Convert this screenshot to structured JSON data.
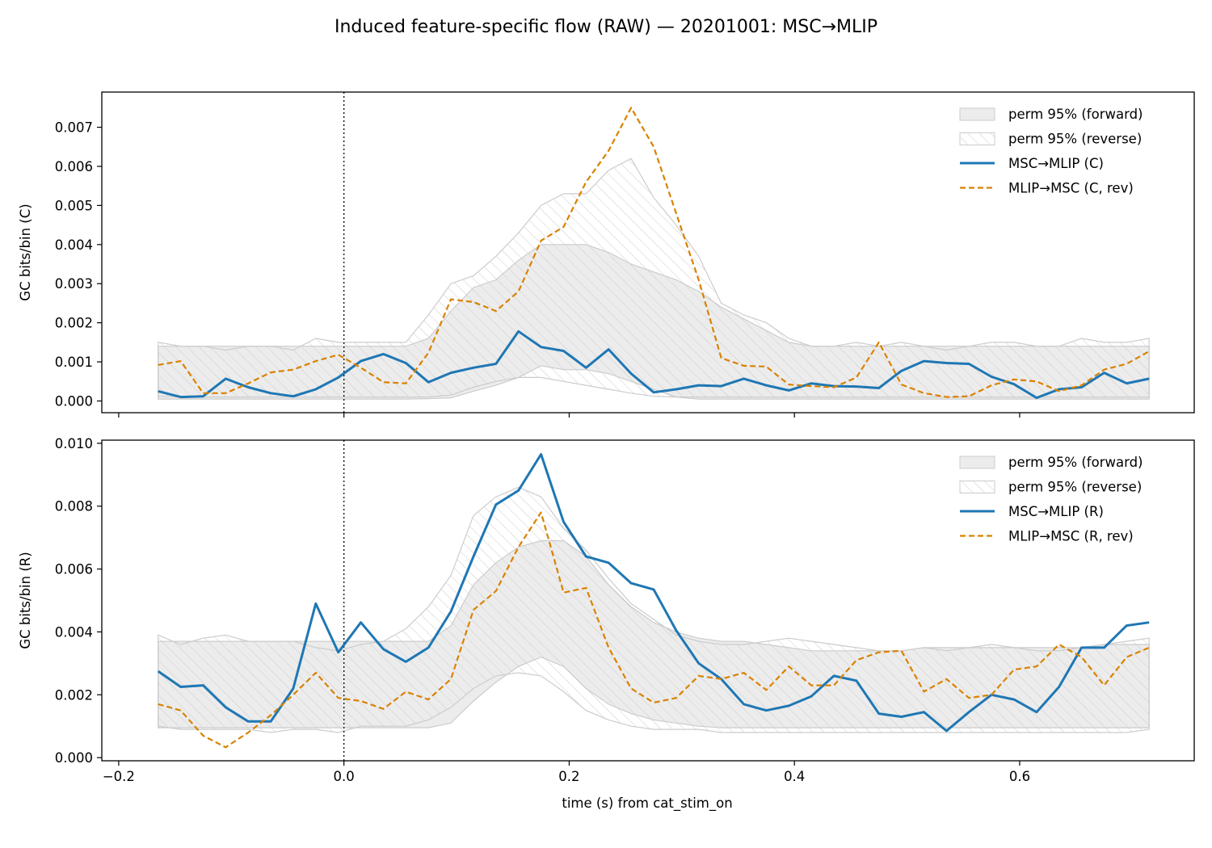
{
  "figure": {
    "suptitle": "Induced feature-specific flow (RAW) — 20201001: MSC→MLIP",
    "xlabel": "time (s) from cat_stim_on"
  },
  "colors": {
    "forward": "#1f77b4",
    "reverse": "#d98200",
    "band_fill": "#d9d9d9",
    "band_edge": "#cccccc",
    "hatch": "#c8c8c8"
  },
  "chart_data": [
    {
      "type": "line",
      "ylabel": "GC bits/bin (C)",
      "xlim": [
        -0.215,
        0.755
      ],
      "ylim": [
        -0.0003,
        0.0079
      ],
      "xticks": [
        -0.2,
        0.0,
        0.2,
        0.4,
        0.6
      ],
      "xtick_labels": [
        "",
        "",
        "",
        "",
        ""
      ],
      "yticks": [
        0,
        0.001,
        0.002,
        0.003,
        0.004,
        0.005,
        0.006,
        0.007
      ],
      "ytick_labels": [
        "0.000",
        "0.001",
        "0.002",
        "0.003",
        "0.004",
        "0.005",
        "0.006",
        "0.007"
      ],
      "vline_x": 0,
      "grid": false,
      "legend_position": "upper right",
      "x": [
        -0.165,
        -0.145,
        -0.125,
        -0.105,
        -0.085,
        -0.065,
        -0.045,
        -0.025,
        -0.005,
        0.015,
        0.035,
        0.055,
        0.075,
        0.095,
        0.115,
        0.135,
        0.155,
        0.175,
        0.195,
        0.215,
        0.235,
        0.255,
        0.275,
        0.295,
        0.315,
        0.335,
        0.355,
        0.375,
        0.395,
        0.415,
        0.435,
        0.455,
        0.475,
        0.495,
        0.515,
        0.535,
        0.555,
        0.575,
        0.595,
        0.615,
        0.635,
        0.655,
        0.675,
        0.695,
        0.715
      ],
      "bands": [
        {
          "name": "perm 95% (forward)",
          "style": "filled",
          "lower": [
            5e-05,
            5e-05,
            5e-05,
            5e-05,
            5e-05,
            5e-05,
            5e-05,
            5e-05,
            5e-05,
            5e-05,
            5e-05,
            5e-05,
            6e-05,
            8e-05,
            0.00025,
            0.0004,
            0.0006,
            0.0009,
            0.0008,
            0.0008,
            0.0007,
            0.0005,
            0.0003,
            0.0001,
            5e-05,
            5e-05,
            5e-05,
            5e-05,
            5e-05,
            5e-05,
            5e-05,
            5e-05,
            5e-05,
            5e-05,
            5e-05,
            5e-05,
            5e-05,
            5e-05,
            5e-05,
            5e-05,
            5e-05,
            5e-05,
            5e-05,
            5e-05,
            5e-05
          ],
          "upper": [
            0.0014,
            0.0014,
            0.0014,
            0.0014,
            0.0014,
            0.0014,
            0.0014,
            0.0014,
            0.0014,
            0.0014,
            0.0014,
            0.0014,
            0.0016,
            0.0023,
            0.0029,
            0.0031,
            0.0036,
            0.004,
            0.004,
            0.004,
            0.0038,
            0.0035,
            0.0033,
            0.0031,
            0.0028,
            0.0024,
            0.0021,
            0.0018,
            0.0015,
            0.0014,
            0.0014,
            0.0014,
            0.0014,
            0.0014,
            0.0014,
            0.0014,
            0.0014,
            0.0014,
            0.0014,
            0.0014,
            0.0014,
            0.0014,
            0.0014,
            0.0014,
            0.0014
          ]
        },
        {
          "name": "perm 95% (reverse)",
          "style": "hatched",
          "lower": [
            0.00012,
            0.0001,
            0.0001,
            0.0001,
            0.0001,
            0.0001,
            0.0001,
            0.0001,
            0.0001,
            0.0001,
            0.0001,
            0.0001,
            0.0001,
            0.00015,
            0.00035,
            0.0005,
            0.0006,
            0.0006,
            0.0005,
            0.0004,
            0.0003,
            0.0002,
            0.00012,
            0.0001,
            0.0001,
            0.0001,
            0.0001,
            0.0001,
            0.0001,
            0.0001,
            0.0001,
            0.0001,
            0.0001,
            0.0001,
            0.0001,
            0.0001,
            0.0001,
            0.0001,
            0.0001,
            0.0001,
            0.0001,
            0.0001,
            0.0001,
            0.0001,
            0.0001
          ],
          "upper": [
            0.0015,
            0.0014,
            0.0014,
            0.0013,
            0.0014,
            0.0014,
            0.0013,
            0.0016,
            0.0015,
            0.0015,
            0.0015,
            0.0015,
            0.0022,
            0.003,
            0.0032,
            0.0037,
            0.0043,
            0.005,
            0.0053,
            0.0053,
            0.0059,
            0.0062,
            0.0052,
            0.0045,
            0.0037,
            0.0025,
            0.0022,
            0.002,
            0.0016,
            0.0014,
            0.0014,
            0.0015,
            0.0014,
            0.0015,
            0.0014,
            0.0013,
            0.0014,
            0.0015,
            0.0015,
            0.0014,
            0.0014,
            0.0016,
            0.0015,
            0.0015,
            0.0016
          ]
        }
      ],
      "series": [
        {
          "name": "MSC→MLIP (C)",
          "style": "solid",
          "values": [
            0.00025,
            0.0001,
            0.00012,
            0.00057,
            0.00035,
            0.0002,
            0.00012,
            0.0003,
            0.0006,
            0.00102,
            0.0012,
            0.00097,
            0.00048,
            0.00072,
            0.00085,
            0.00095,
            0.00178,
            0.00138,
            0.00128,
            0.00085,
            0.00132,
            0.0007,
            0.00022,
            0.0003,
            0.0004,
            0.00038,
            0.00057,
            0.0004,
            0.00027,
            0.00045,
            0.00038,
            0.00037,
            0.00033,
            0.00077,
            0.00102,
            0.00097,
            0.00095,
            0.00062,
            0.00043,
            8e-05,
            0.0003,
            0.00035,
            0.00072,
            0.00045,
            0.00057
          ]
        },
        {
          "name": "MLIP→MSC (C, rev)",
          "style": "dashed",
          "values": [
            0.00092,
            0.00102,
            0.0002,
            0.0002,
            0.00045,
            0.00073,
            0.0008,
            0.00102,
            0.00118,
            0.00085,
            0.00048,
            0.00045,
            0.00123,
            0.0026,
            0.00253,
            0.0023,
            0.0028,
            0.0041,
            0.00445,
            0.0056,
            0.0064,
            0.0075,
            0.0065,
            0.0048,
            0.0031,
            0.0011,
            0.0009,
            0.00088,
            0.00042,
            0.00038,
            0.00035,
            0.0006,
            0.0015,
            0.00042,
            0.0002,
            0.0001,
            0.00012,
            0.0004,
            0.00055,
            0.0005,
            0.00025,
            0.0004,
            0.0008,
            0.00095,
            0.00127
          ]
        }
      ]
    },
    {
      "type": "line",
      "ylabel": "GC bits/bin (R)",
      "xlim": [
        -0.215,
        0.755
      ],
      "ylim": [
        -0.0001,
        0.0101
      ],
      "xticks": [
        -0.2,
        0.0,
        0.2,
        0.4,
        0.6
      ],
      "xtick_labels": [
        "−0.2",
        "0.0",
        "0.2",
        "0.4",
        "0.6"
      ],
      "yticks": [
        0,
        0.002,
        0.004,
        0.006,
        0.008,
        0.01
      ],
      "ytick_labels": [
        "0.000",
        "0.002",
        "0.004",
        "0.006",
        "0.008",
        "0.010"
      ],
      "vline_x": 0,
      "grid": false,
      "legend_position": "upper right",
      "x": [
        -0.165,
        -0.145,
        -0.125,
        -0.105,
        -0.085,
        -0.065,
        -0.045,
        -0.025,
        -0.005,
        0.015,
        0.035,
        0.055,
        0.075,
        0.095,
        0.115,
        0.135,
        0.155,
        0.175,
        0.195,
        0.215,
        0.235,
        0.255,
        0.275,
        0.295,
        0.315,
        0.335,
        0.355,
        0.375,
        0.395,
        0.415,
        0.435,
        0.455,
        0.475,
        0.495,
        0.515,
        0.535,
        0.555,
        0.575,
        0.595,
        0.615,
        0.635,
        0.655,
        0.675,
        0.695,
        0.715
      ],
      "bands": [
        {
          "name": "perm 95% (forward)",
          "style": "filled",
          "lower": [
            0.00095,
            0.00095,
            0.00095,
            0.00095,
            0.00095,
            0.00095,
            0.00095,
            0.00095,
            0.00095,
            0.00095,
            0.00095,
            0.00095,
            0.00095,
            0.0011,
            0.0018,
            0.0024,
            0.0029,
            0.0032,
            0.0029,
            0.0022,
            0.0017,
            0.0014,
            0.0012,
            0.0011,
            0.001,
            0.00095,
            0.00095,
            0.00095,
            0.00095,
            0.00095,
            0.00095,
            0.00095,
            0.00095,
            0.00095,
            0.00095,
            0.00095,
            0.00095,
            0.00095,
            0.00095,
            0.00095,
            0.00095,
            0.00095,
            0.00095,
            0.00095,
            0.00095
          ],
          "upper": [
            0.0037,
            0.0037,
            0.0037,
            0.0037,
            0.0037,
            0.0037,
            0.0037,
            0.0037,
            0.0037,
            0.0037,
            0.0037,
            0.0037,
            0.0037,
            0.0042,
            0.0055,
            0.0062,
            0.0067,
            0.0069,
            0.0069,
            0.0064,
            0.0055,
            0.0048,
            0.0043,
            0.004,
            0.0038,
            0.0037,
            0.0037,
            0.0036,
            0.0035,
            0.0034,
            0.0034,
            0.0034,
            0.0034,
            0.0034,
            0.0035,
            0.0035,
            0.0035,
            0.0035,
            0.0035,
            0.0035,
            0.0035,
            0.0035,
            0.0036,
            0.0036,
            0.0036
          ]
        },
        {
          "name": "perm 95% (reverse)",
          "style": "hatched",
          "lower": [
            0.001,
            0.0009,
            0.0009,
            0.0009,
            0.0009,
            0.0008,
            0.0009,
            0.0009,
            0.0008,
            0.001,
            0.001,
            0.001,
            0.0012,
            0.0016,
            0.0022,
            0.0026,
            0.0027,
            0.0026,
            0.0021,
            0.0015,
            0.0012,
            0.001,
            0.0009,
            0.0009,
            0.0009,
            0.0008,
            0.0008,
            0.0008,
            0.0008,
            0.0008,
            0.0008,
            0.0008,
            0.0008,
            0.0008,
            0.0008,
            0.0008,
            0.0008,
            0.0008,
            0.0008,
            0.0008,
            0.0008,
            0.0008,
            0.0008,
            0.0008,
            0.0009
          ],
          "upper": [
            0.0039,
            0.0036,
            0.0038,
            0.0039,
            0.0037,
            0.0037,
            0.0037,
            0.0035,
            0.0034,
            0.0036,
            0.0037,
            0.0041,
            0.0048,
            0.0058,
            0.0077,
            0.0083,
            0.0086,
            0.0083,
            0.0073,
            0.0066,
            0.0057,
            0.0049,
            0.0044,
            0.0039,
            0.0037,
            0.0036,
            0.0036,
            0.0037,
            0.0038,
            0.0037,
            0.0036,
            0.0035,
            0.0034,
            0.0034,
            0.0035,
            0.0034,
            0.0035,
            0.0036,
            0.0035,
            0.0034,
            0.0034,
            0.0035,
            0.0036,
            0.0037,
            0.0038
          ]
        }
      ],
      "series": [
        {
          "name": "MSC→MLIP (R)",
          "style": "solid",
          "values": [
            0.00275,
            0.00225,
            0.0023,
            0.0016,
            0.00115,
            0.00115,
            0.0022,
            0.0049,
            0.00335,
            0.0043,
            0.00345,
            0.00305,
            0.0035,
            0.00465,
            0.0064,
            0.00805,
            0.0085,
            0.00965,
            0.0075,
            0.0064,
            0.0062,
            0.00555,
            0.00535,
            0.00405,
            0.003,
            0.0025,
            0.0017,
            0.0015,
            0.00165,
            0.00195,
            0.0026,
            0.00245,
            0.0014,
            0.0013,
            0.00145,
            0.00085,
            0.00145,
            0.002,
            0.00185,
            0.00145,
            0.00225,
            0.0035,
            0.0035,
            0.0042,
            0.0043
          ]
        },
        {
          "name": "MLIP→MSC (R, rev)",
          "style": "dashed",
          "values": [
            0.0017,
            0.0015,
            0.0007,
            0.00033,
            0.0008,
            0.00135,
            0.002,
            0.0027,
            0.0019,
            0.0018,
            0.00155,
            0.0021,
            0.00185,
            0.0025,
            0.0047,
            0.0053,
            0.0067,
            0.0078,
            0.00525,
            0.0054,
            0.0035,
            0.0022,
            0.00175,
            0.0019,
            0.0026,
            0.0025,
            0.0027,
            0.00215,
            0.0029,
            0.0023,
            0.0023,
            0.0031,
            0.00335,
            0.0034,
            0.0021,
            0.0025,
            0.0019,
            0.002,
            0.0028,
            0.0029,
            0.0036,
            0.0032,
            0.0023,
            0.0032,
            0.0035
          ]
        }
      ]
    }
  ]
}
